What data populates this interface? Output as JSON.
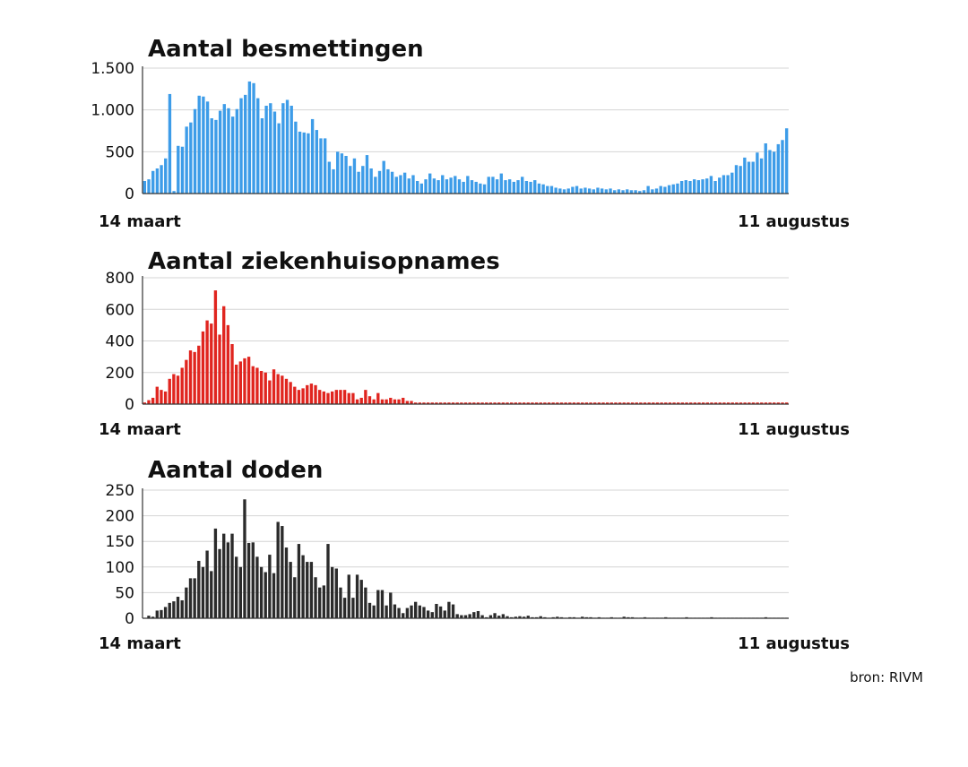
{
  "source": "bron: RIVM",
  "chart_data": [
    {
      "type": "bar",
      "title": "Aantal besmettingen",
      "color": "#3d9ce8",
      "ylim": [
        0,
        1500
      ],
      "yticks": [
        0,
        500,
        1000,
        1500
      ],
      "ytick_labels": [
        "0",
        "500",
        "1.000",
        "1.500"
      ],
      "x_start_label": "14 maart",
      "x_end_label": "11 augustus",
      "grid": true,
      "values": [
        150,
        170,
        270,
        300,
        340,
        420,
        1190,
        30,
        570,
        560,
        800,
        850,
        1010,
        1170,
        1160,
        1100,
        900,
        880,
        990,
        1070,
        1020,
        920,
        1010,
        1140,
        1180,
        1340,
        1320,
        1140,
        900,
        1050,
        1080,
        980,
        840,
        1080,
        1120,
        1050,
        860,
        740,
        730,
        720,
        890,
        760,
        660,
        660,
        380,
        290,
        500,
        480,
        450,
        330,
        420,
        260,
        330,
        460,
        300,
        200,
        270,
        390,
        290,
        260,
        200,
        220,
        250,
        180,
        220,
        150,
        120,
        170,
        240,
        180,
        160,
        220,
        170,
        190,
        210,
        170,
        140,
        210,
        160,
        140,
        120,
        110,
        200,
        200,
        170,
        240,
        160,
        170,
        140,
        160,
        200,
        150,
        140,
        160,
        120,
        110,
        90,
        90,
        70,
        60,
        50,
        60,
        80,
        90,
        60,
        70,
        60,
        50,
        70,
        60,
        50,
        60,
        40,
        50,
        40,
        50,
        40,
        40,
        30,
        40,
        90,
        50,
        60,
        90,
        80,
        100,
        110,
        120,
        150,
        160,
        150,
        170,
        160,
        170,
        180,
        210,
        150,
        190,
        220,
        220,
        250,
        340,
        330,
        430,
        380,
        380,
        490,
        420,
        600,
        520,
        500,
        590,
        640,
        780
      ]
    },
    {
      "type": "bar",
      "title": "Aantal ziekenhuisopnames",
      "color": "#e0251f",
      "ylim": [
        0,
        800
      ],
      "yticks": [
        0,
        200,
        400,
        600,
        800
      ],
      "ytick_labels": [
        "0",
        "200",
        "400",
        "600",
        "800"
      ],
      "x_start_label": "14 maart",
      "x_end_label": "11 augustus",
      "grid": true,
      "values": [
        10,
        25,
        40,
        110,
        90,
        80,
        160,
        190,
        180,
        230,
        280,
        340,
        330,
        370,
        460,
        530,
        510,
        720,
        440,
        620,
        500,
        380,
        250,
        270,
        290,
        300,
        240,
        230,
        210,
        200,
        150,
        220,
        190,
        180,
        160,
        140,
        110,
        90,
        100,
        120,
        130,
        120,
        90,
        80,
        70,
        80,
        90,
        90,
        90,
        70,
        70,
        30,
        40,
        90,
        50,
        30,
        70,
        30,
        30,
        40,
        30,
        30,
        40,
        20,
        20,
        10,
        10,
        10,
        10,
        10,
        10,
        10,
        10,
        10,
        10,
        10,
        10,
        10,
        10,
        10,
        10,
        10,
        10,
        10,
        10,
        10,
        10,
        10,
        10,
        10,
        10,
        10,
        10,
        10,
        10,
        10,
        10,
        10,
        10,
        10,
        10,
        10,
        10,
        10,
        10,
        10,
        10,
        10,
        10,
        10,
        10,
        10,
        10,
        10,
        10,
        10,
        10,
        10,
        10,
        10,
        10,
        10,
        10,
        10,
        10,
        10,
        10,
        10,
        10,
        10,
        10,
        10,
        10,
        10,
        10,
        10,
        10,
        10,
        10,
        10,
        10,
        10,
        10,
        10,
        10,
        10,
        10,
        10,
        10,
        10,
        10,
        10,
        10,
        10,
        10
      ]
    },
    {
      "type": "bar",
      "title": "Aantal doden",
      "color": "#2b2b2b",
      "ylim": [
        0,
        250
      ],
      "yticks": [
        0,
        50,
        100,
        150,
        200,
        250
      ],
      "ytick_labels": [
        "0",
        "50",
        "100",
        "150",
        "200",
        "250"
      ],
      "x_start_label": "14 maart",
      "x_end_label": "11 augustus",
      "grid": true,
      "values": [
        0,
        5,
        3,
        15,
        16,
        22,
        30,
        33,
        42,
        35,
        60,
        78,
        78,
        112,
        100,
        132,
        92,
        175,
        135,
        165,
        148,
        165,
        120,
        100,
        232,
        147,
        148,
        120,
        100,
        90,
        124,
        88,
        188,
        180,
        138,
        110,
        80,
        145,
        123,
        110,
        110,
        80,
        60,
        64,
        145,
        100,
        97,
        60,
        40,
        85,
        40,
        85,
        75,
        60,
        30,
        25,
        55,
        55,
        25,
        50,
        27,
        20,
        10,
        20,
        25,
        32,
        25,
        22,
        15,
        12,
        28,
        23,
        15,
        32,
        27,
        8,
        6,
        6,
        8,
        12,
        14,
        6,
        2,
        6,
        10,
        5,
        8,
        4,
        2,
        3,
        4,
        3,
        5,
        2,
        2,
        4,
        2,
        1,
        2,
        3,
        2,
        1,
        2,
        2,
        1,
        3,
        2,
        2,
        1,
        2,
        1,
        1,
        2,
        1,
        1,
        3,
        2,
        2,
        1,
        1,
        2,
        1,
        1,
        1,
        1,
        2,
        1,
        1,
        1,
        1,
        2,
        1,
        1,
        1,
        1,
        1,
        2,
        1,
        1,
        1,
        1,
        1,
        1,
        1,
        1,
        1,
        1,
        1,
        1,
        2,
        1,
        1,
        1,
        1,
        1
      ]
    }
  ]
}
